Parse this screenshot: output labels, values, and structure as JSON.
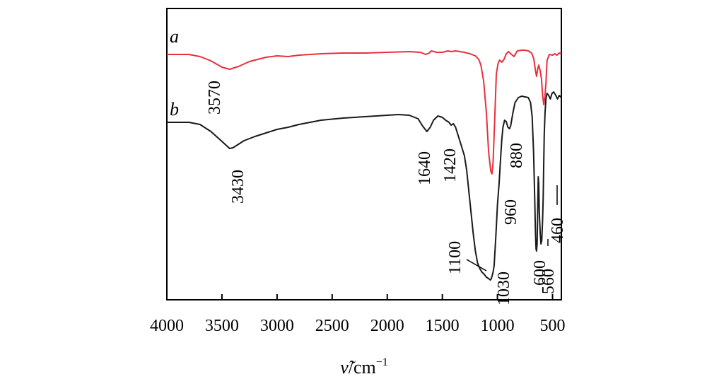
{
  "chart_data": {
    "type": "line",
    "title": "",
    "xlabel_main": "ν̃",
    "xlabel_unit": "/cm",
    "xlabel_exp": "−1",
    "ylabel": "",
    "xlim": [
      4000,
      420
    ],
    "x_ticks": [
      4000,
      3500,
      3000,
      2500,
      2000,
      1500,
      1000,
      500
    ],
    "grid": false,
    "legend": "none",
    "series": [
      {
        "name": "a",
        "color": "#e8303c",
        "points": [
          [
            4000,
            77
          ],
          [
            3800,
            77
          ],
          [
            3700,
            80
          ],
          [
            3600,
            86
          ],
          [
            3500,
            95
          ],
          [
            3430,
            98
          ],
          [
            3350,
            94
          ],
          [
            3250,
            87
          ],
          [
            3100,
            81
          ],
          [
            3000,
            79
          ],
          [
            2900,
            80
          ],
          [
            2800,
            78
          ],
          [
            2600,
            76
          ],
          [
            2400,
            75
          ],
          [
            2200,
            75
          ],
          [
            2000,
            74
          ],
          [
            1800,
            73
          ],
          [
            1700,
            74
          ],
          [
            1650,
            77
          ],
          [
            1620,
            75
          ],
          [
            1600,
            72
          ],
          [
            1550,
            74
          ],
          [
            1500,
            74
          ],
          [
            1450,
            72
          ],
          [
            1420,
            73
          ],
          [
            1380,
            72
          ],
          [
            1300,
            74
          ],
          [
            1250,
            76
          ],
          [
            1200,
            79
          ],
          [
            1170,
            84
          ],
          [
            1150,
            92
          ],
          [
            1125,
            115
          ],
          [
            1100,
            160
          ],
          [
            1080,
            215
          ],
          [
            1060,
            242
          ],
          [
            1050,
            246
          ],
          [
            1040,
            230
          ],
          [
            1025,
            170
          ],
          [
            1010,
            105
          ],
          [
            995,
            90
          ],
          [
            980,
            85
          ],
          [
            960,
            88
          ],
          [
            940,
            84
          ],
          [
            920,
            76
          ],
          [
            900,
            73
          ],
          [
            880,
            76
          ],
          [
            850,
            80
          ],
          [
            820,
            72
          ],
          [
            780,
            71
          ],
          [
            750,
            71
          ],
          [
            720,
            72
          ],
          [
            690,
            75
          ],
          [
            670,
            83
          ],
          [
            655,
            100
          ],
          [
            645,
            108
          ],
          [
            635,
            98
          ],
          [
            625,
            92
          ],
          [
            612,
            100
          ],
          [
            600,
            112
          ],
          [
            590,
            135
          ],
          [
            580,
            148
          ],
          [
            570,
            138
          ],
          [
            560,
            118
          ],
          [
            550,
            86
          ],
          [
            530,
            77
          ],
          [
            500,
            78
          ],
          [
            480,
            76
          ],
          [
            460,
            78
          ],
          [
            440,
            75
          ],
          [
            420,
            76
          ]
        ]
      },
      {
        "name": "b",
        "color": "#1a1a1a",
        "points": [
          [
            4000,
            173
          ],
          [
            3800,
            173
          ],
          [
            3700,
            176
          ],
          [
            3600,
            186
          ],
          [
            3500,
            200
          ],
          [
            3430,
            210
          ],
          [
            3400,
            209
          ],
          [
            3300,
            199
          ],
          [
            3200,
            193
          ],
          [
            3100,
            188
          ],
          [
            3000,
            183
          ],
          [
            2900,
            180
          ],
          [
            2800,
            176
          ],
          [
            2600,
            170
          ],
          [
            2400,
            167
          ],
          [
            2200,
            165
          ],
          [
            2000,
            163
          ],
          [
            1900,
            162
          ],
          [
            1800,
            163
          ],
          [
            1720,
            168
          ],
          [
            1680,
            178
          ],
          [
            1640,
            186
          ],
          [
            1610,
            180
          ],
          [
            1580,
            170
          ],
          [
            1540,
            164
          ],
          [
            1500,
            166
          ],
          [
            1470,
            170
          ],
          [
            1440,
            173
          ],
          [
            1420,
            177
          ],
          [
            1400,
            175
          ],
          [
            1380,
            180
          ],
          [
            1360,
            190
          ],
          [
            1330,
            205
          ],
          [
            1300,
            220
          ],
          [
            1280,
            240
          ],
          [
            1260,
            270
          ],
          [
            1240,
            300
          ],
          [
            1220,
            330
          ],
          [
            1200,
            355
          ],
          [
            1180,
            372
          ],
          [
            1160,
            380
          ],
          [
            1140,
            385
          ],
          [
            1120,
            388
          ],
          [
            1100,
            392
          ],
          [
            1080,
            394
          ],
          [
            1065,
            396
          ],
          [
            1055,
            394
          ],
          [
            1040,
            385
          ],
          [
            1030,
            376
          ],
          [
            1015,
            335
          ],
          [
            1000,
            290
          ],
          [
            985,
            260
          ],
          [
            970,
            220
          ],
          [
            960,
            197
          ],
          [
            950,
            180
          ],
          [
            935,
            170
          ],
          [
            920,
            172
          ],
          [
            905,
            180
          ],
          [
            890,
            182
          ],
          [
            880,
            178
          ],
          [
            860,
            160
          ],
          [
            840,
            145
          ],
          [
            810,
            138
          ],
          [
            780,
            136
          ],
          [
            750,
            137
          ],
          [
            720,
            138
          ],
          [
            700,
            145
          ],
          [
            685,
            165
          ],
          [
            672,
            215
          ],
          [
            662,
            280
          ],
          [
            655,
            330
          ],
          [
            650,
            352
          ],
          [
            645,
            355
          ],
          [
            640,
            345
          ],
          [
            635,
            300
          ],
          [
            630,
            250
          ],
          [
            625,
            260
          ],
          [
            620,
            300
          ],
          [
            612,
            330
          ],
          [
            605,
            345
          ],
          [
            598,
            340
          ],
          [
            590,
            310
          ],
          [
            585,
            280
          ],
          [
            580,
            230
          ],
          [
            575,
            190
          ],
          [
            568,
            160
          ],
          [
            560,
            140
          ],
          [
            550,
            132
          ],
          [
            535,
            135
          ],
          [
            520,
            140
          ],
          [
            505,
            132
          ],
          [
            490,
            130
          ],
          [
            470,
            135
          ],
          [
            455,
            140
          ],
          [
            440,
            135
          ],
          [
            420,
            138
          ]
        ]
      }
    ],
    "series_labels": [
      "a",
      "b"
    ],
    "annotations": [
      "3570",
      "3430",
      "1640",
      "1420",
      "880",
      "960",
      "1100",
      "1030",
      "600",
      "560",
      "460"
    ]
  }
}
